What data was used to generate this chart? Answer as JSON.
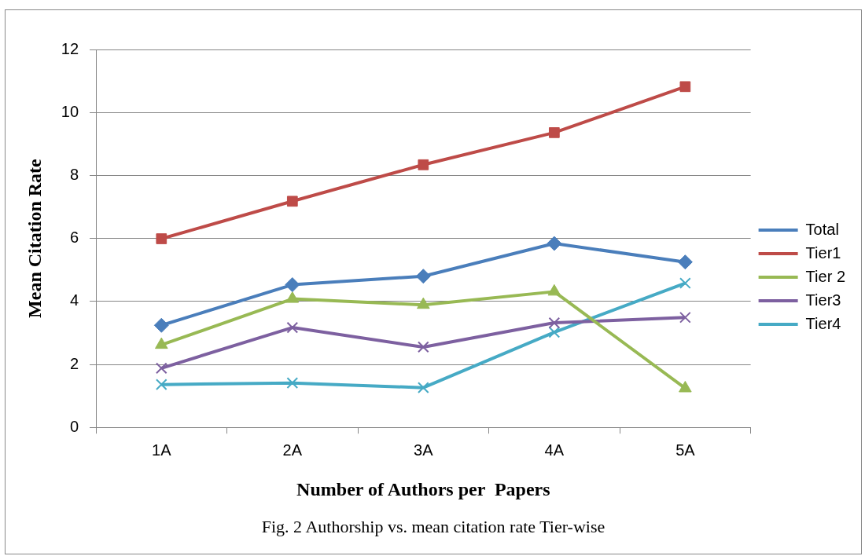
{
  "chart_data": {
    "type": "line",
    "xlabel": "Number of Authors per  Papers",
    "ylabel": "Mean Citation Rate",
    "categories": [
      "1A",
      "2A",
      "3A",
      "4A",
      "5A"
    ],
    "series": [
      {
        "name": "Total",
        "color": "#4a7ebb",
        "marker": "diamond",
        "values": [
          3.24,
          4.53,
          4.8,
          5.84,
          5.25
        ]
      },
      {
        "name": "Tier1",
        "color": "#be4b48",
        "marker": "square",
        "values": [
          5.99,
          7.18,
          8.34,
          9.36,
          10.82
        ]
      },
      {
        "name": "Tier 2",
        "color": "#98b954",
        "marker": "triangle",
        "values": [
          2.62,
          4.08,
          3.89,
          4.31,
          1.24
        ]
      },
      {
        "name": "Tier3",
        "color": "#7d60a0",
        "marker": "cross",
        "values": [
          1.88,
          3.17,
          2.55,
          3.32,
          3.49
        ]
      },
      {
        "name": "Tier4",
        "color": "#46aac5",
        "marker": "cross",
        "values": [
          1.36,
          1.41,
          1.26,
          3.02,
          4.58
        ]
      }
    ],
    "ylim": [
      0,
      12
    ],
    "yticks": [
      0,
      2,
      4,
      6,
      8,
      10,
      12
    ],
    "grid": "y",
    "legend": "right",
    "line_style": "solid",
    "annotations": [
      "Fig. 2 Authorship vs. mean citation rate  Tier-wise"
    ]
  }
}
